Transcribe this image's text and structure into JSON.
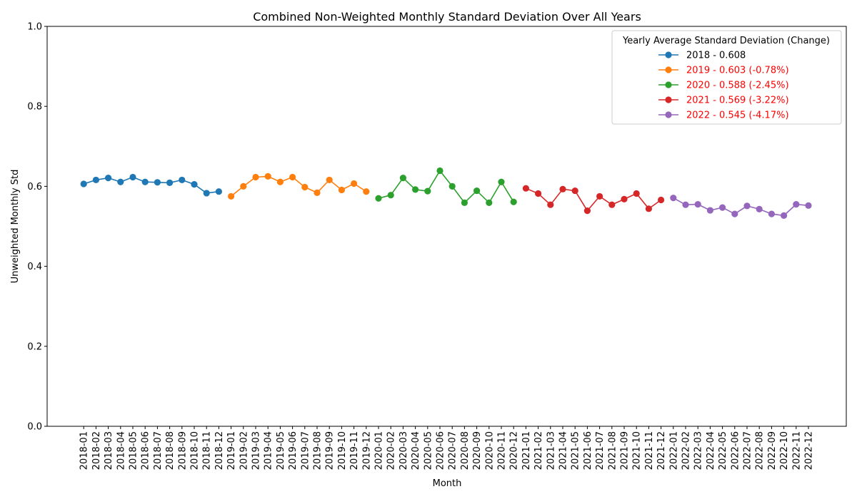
{
  "chart_data": {
    "type": "line",
    "title": "Combined Non-Weighted Monthly Standard Deviation Over All Years",
    "xlabel": "Month",
    "ylabel": "Unweighted Monthly Std",
    "ylim": [
      0.0,
      1.0
    ],
    "yticks": [
      "0.0",
      "0.2",
      "0.4",
      "0.6",
      "0.8",
      "1.0"
    ],
    "grid": false,
    "legend": {
      "title": "Yearly Average Standard Deviation (Change)",
      "placement": "top-right"
    },
    "series": [
      {
        "name": "2018 - 0.608",
        "color": "#1f77b4",
        "label_color": "#000000",
        "x": [
          "2018-01",
          "2018-02",
          "2018-03",
          "2018-04",
          "2018-05",
          "2018-06",
          "2018-07",
          "2018-08",
          "2018-09",
          "2018-10",
          "2018-11",
          "2018-12"
        ],
        "values": [
          0.606,
          0.616,
          0.621,
          0.611,
          0.623,
          0.611,
          0.61,
          0.609,
          0.616,
          0.605,
          0.583,
          0.587
        ]
      },
      {
        "name": "2019 - 0.603 (-0.78%)",
        "color": "#ff7f0e",
        "label_color": "#ff0000",
        "x": [
          "2019-01",
          "2019-02",
          "2019-03",
          "2019-04",
          "2019-05",
          "2019-06",
          "2019-07",
          "2019-08",
          "2019-09",
          "2019-10",
          "2019-11",
          "2019-12"
        ],
        "values": [
          0.575,
          0.6,
          0.623,
          0.625,
          0.611,
          0.623,
          0.598,
          0.584,
          0.616,
          0.591,
          0.607,
          0.587
        ]
      },
      {
        "name": "2020 - 0.588 (-2.45%)",
        "color": "#2ca02c",
        "label_color": "#ff0000",
        "x": [
          "2020-01",
          "2020-02",
          "2020-03",
          "2020-04",
          "2020-05",
          "2020-06",
          "2020-07",
          "2020-08",
          "2020-09",
          "2020-10",
          "2020-11",
          "2020-12"
        ],
        "values": [
          0.57,
          0.578,
          0.621,
          0.592,
          0.588,
          0.639,
          0.6,
          0.559,
          0.589,
          0.559,
          0.611,
          0.561
        ]
      },
      {
        "name": "2021 - 0.569 (-3.22%)",
        "color": "#d62728",
        "label_color": "#ff0000",
        "x": [
          "2021-01",
          "2021-02",
          "2021-03",
          "2021-04",
          "2021-05",
          "2021-06",
          "2021-07",
          "2021-08",
          "2021-09",
          "2021-10",
          "2021-11",
          "2021-12"
        ],
        "values": [
          0.595,
          0.582,
          0.554,
          0.593,
          0.589,
          0.539,
          0.575,
          0.554,
          0.568,
          0.582,
          0.544,
          0.566
        ]
      },
      {
        "name": "2022 - 0.545 (-4.17%)",
        "color": "#9467bd",
        "label_color": "#ff0000",
        "x": [
          "2022-01",
          "2022-02",
          "2022-03",
          "2022-04",
          "2022-05",
          "2022-06",
          "2022-07",
          "2022-08",
          "2022-09",
          "2022-10",
          "2022-11",
          "2022-12"
        ],
        "values": [
          0.571,
          0.554,
          0.555,
          0.54,
          0.547,
          0.531,
          0.551,
          0.543,
          0.531,
          0.527,
          0.555,
          0.552
        ]
      }
    ]
  }
}
